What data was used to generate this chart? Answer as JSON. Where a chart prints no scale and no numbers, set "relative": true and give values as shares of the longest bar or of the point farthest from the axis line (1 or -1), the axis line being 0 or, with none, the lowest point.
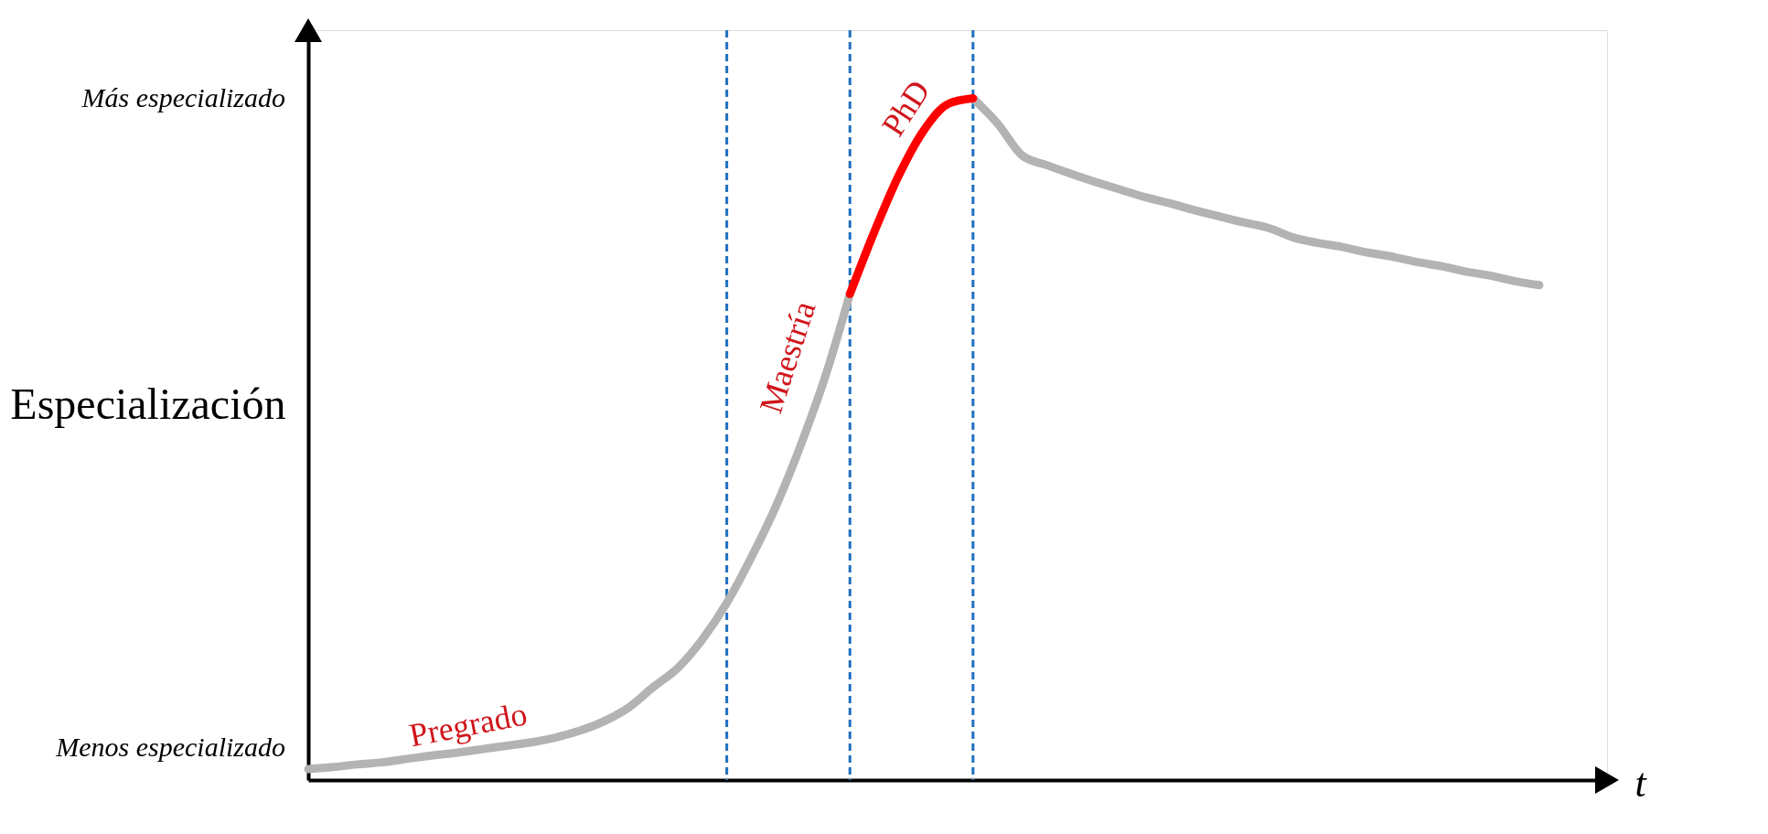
{
  "chart_data": {
    "type": "line",
    "relative": true,
    "ylabel": "Especialización",
    "xlabel": "t",
    "categories": [
      null,
      null,
      null,
      null,
      null,
      null,
      null,
      null,
      null,
      null,
      null,
      null,
      null,
      null,
      null,
      null,
      null,
      null,
      null,
      null,
      null,
      null,
      null,
      null,
      null,
      null,
      null,
      null,
      null,
      null,
      null,
      null,
      null,
      null,
      null,
      null,
      null,
      null,
      null,
      null,
      null,
      null,
      null,
      null,
      null,
      null,
      null,
      null,
      null,
      null,
      null
    ],
    "grid": "x",
    "line_style": "solid",
    "series": [
      {
        "color": "#b3b3b3",
        "values": [
          0.016,
          0.019,
          0.023,
          0.026,
          0.031,
          0.036,
          0.04,
          0.045,
          0.05,
          0.055,
          0.062,
          0.072,
          0.086,
          0.106,
          0.136,
          0.164,
          0.206,
          0.26,
          0.327,
          0.402,
          0.491,
          0.592,
          0.713,
          null,
          null,
          null,
          null,
          1.0,
          0.963,
          0.916,
          0.902,
          0.889,
          0.877,
          0.866,
          0.855,
          0.846,
          0.836,
          0.827,
          0.818,
          0.81,
          0.796,
          0.788,
          0.782,
          0.774,
          0.768,
          0.76,
          0.754,
          0.746,
          0.74,
          0.732,
          0.726
        ]
      },
      {
        "color": "#ff0000",
        "values": [
          null,
          null,
          null,
          null,
          null,
          null,
          null,
          null,
          null,
          null,
          null,
          null,
          null,
          null,
          null,
          null,
          null,
          null,
          null,
          null,
          null,
          null,
          0.713,
          0.805,
          0.888,
          0.953,
          0.992,
          1.0,
          null,
          null,
          null,
          null,
          null,
          null,
          null,
          null,
          null,
          null,
          null,
          null,
          null,
          null,
          null,
          null,
          null,
          null,
          null,
          null,
          null,
          null,
          null
        ]
      }
    ],
    "annotations": [
      "Pregrado",
      "Maestría",
      "PhD",
      "Más especializado",
      "Menos especializado"
    ]
  }
}
